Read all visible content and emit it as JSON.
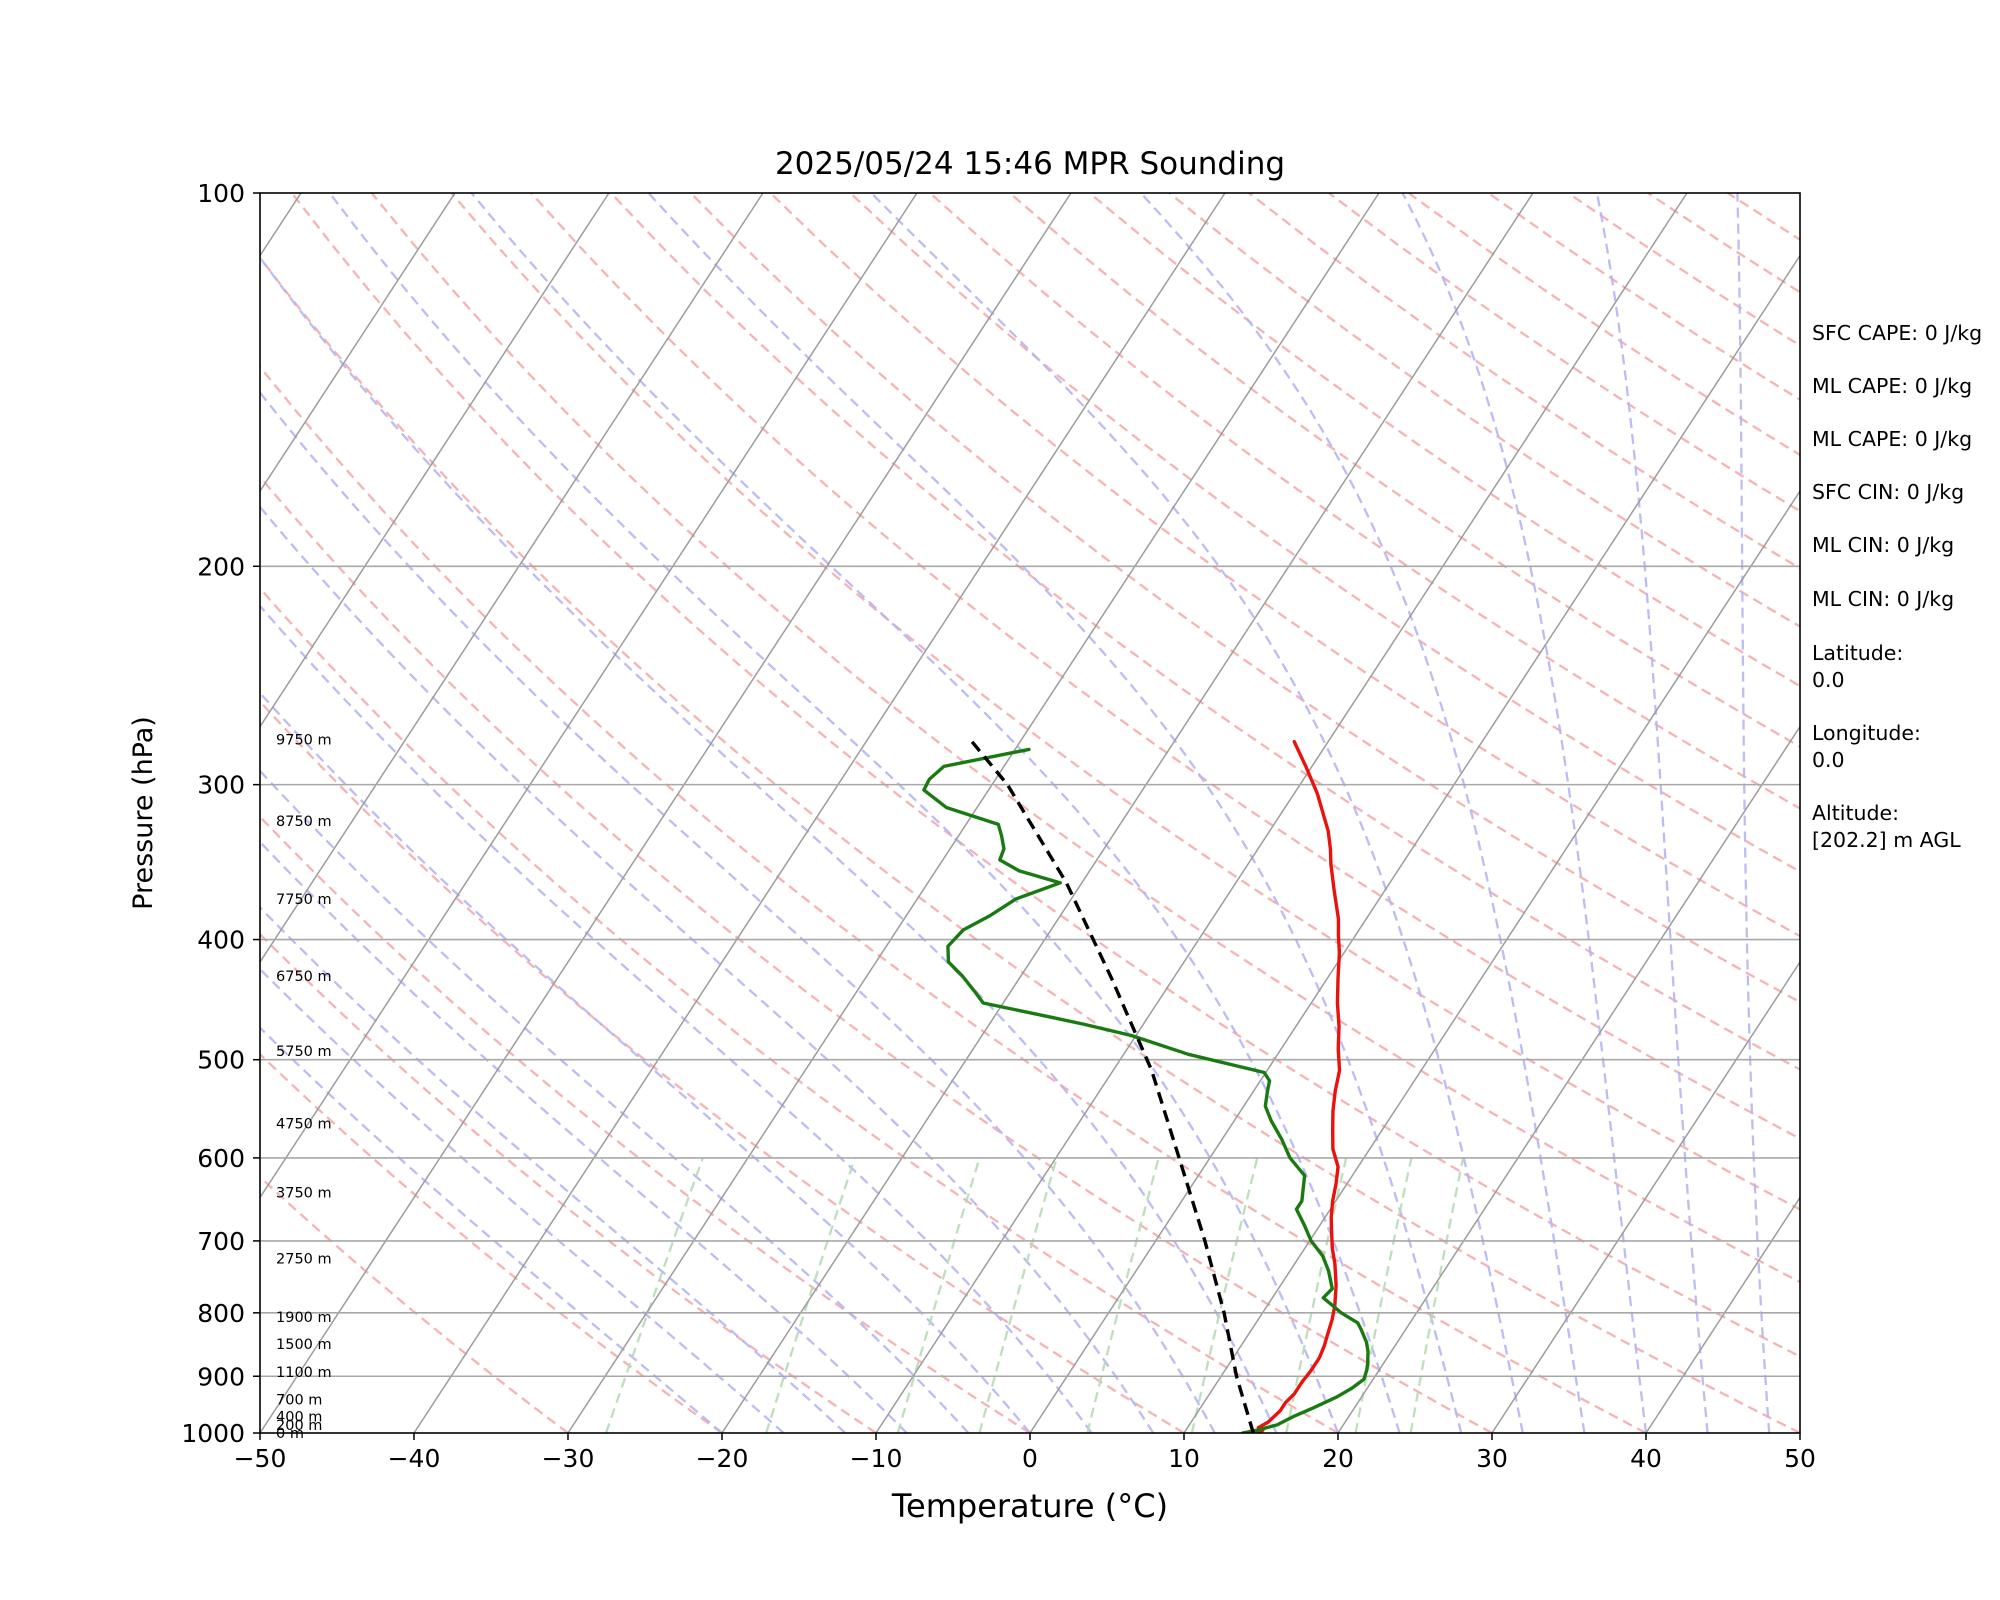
{
  "chart_data": {
    "type": "line",
    "title": "2025/05/24 15:46 MPR Sounding",
    "xlabel": "Temperature (°C)",
    "ylabel": "Pressure (hPa)",
    "xlim": [
      -50,
      50
    ],
    "ylim": [
      1000,
      100
    ],
    "y_scale": "log",
    "skew": "skew-T",
    "x_ticks": [
      "−50",
      "−40",
      "−30",
      "−20",
      "−10",
      "0",
      "10",
      "20",
      "30",
      "40",
      "50"
    ],
    "x_tick_values": [
      -50,
      -40,
      -30,
      -20,
      -10,
      0,
      10,
      20,
      30,
      40,
      50
    ],
    "y_ticks": [
      "1000",
      "900",
      "800",
      "700",
      "600",
      "500",
      "400",
      "300",
      "200",
      "100"
    ],
    "y_tick_values": [
      1000,
      900,
      800,
      700,
      600,
      500,
      400,
      300,
      200,
      100
    ],
    "height_labels": [
      {
        "text": "0 m",
        "pressure": 1000
      },
      {
        "text": "200 m",
        "pressure": 985
      },
      {
        "text": "400 m",
        "pressure": 970
      },
      {
        "text": "700 m",
        "pressure": 940
      },
      {
        "text": "1100 m",
        "pressure": 893
      },
      {
        "text": "1500 m",
        "pressure": 848
      },
      {
        "text": "1900 m",
        "pressure": 806
      },
      {
        "text": "2750 m",
        "pressure": 723
      },
      {
        "text": "3750 m",
        "pressure": 640
      },
      {
        "text": "4750 m",
        "pressure": 563
      },
      {
        "text": "5750 m",
        "pressure": 492
      },
      {
        "text": "6750 m",
        "pressure": 428
      },
      {
        "text": "7750 m",
        "pressure": 371
      },
      {
        "text": "8750 m",
        "pressure": 321
      },
      {
        "text": "9750 m",
        "pressure": 276
      }
    ],
    "series": [
      {
        "color": "#e8120e",
        "style": "solid",
        "points": [
          [
            14.8,
            1000
          ],
          [
            15.0,
            995
          ],
          [
            14.6,
            990
          ],
          [
            15.0,
            980
          ],
          [
            15.3,
            960
          ],
          [
            15.3,
            945
          ],
          [
            15.5,
            930
          ],
          [
            15.5,
            910
          ],
          [
            15.6,
            890
          ],
          [
            15.6,
            870
          ],
          [
            15.4,
            850
          ],
          [
            15.1,
            830
          ],
          [
            14.8,
            810
          ],
          [
            14.4,
            790
          ],
          [
            13.6,
            760
          ],
          [
            12.6,
            730
          ],
          [
            11.8,
            710
          ],
          [
            11.1,
            690
          ],
          [
            10.4,
            670
          ],
          [
            9.8,
            650
          ],
          [
            9.3,
            630
          ],
          [
            8.7,
            610
          ],
          [
            7.6,
            590
          ],
          [
            6.8,
            570
          ],
          [
            6.0,
            550
          ],
          [
            5.3,
            530
          ],
          [
            4.7,
            510
          ],
          [
            3.7,
            490
          ],
          [
            2.8,
            470
          ],
          [
            1.7,
            450
          ],
          [
            0.7,
            430
          ],
          [
            -0.3,
            410
          ],
          [
            -1.1,
            397
          ],
          [
            -1.8,
            385
          ],
          [
            -3.3,
            365
          ],
          [
            -4.6,
            348
          ],
          [
            -5.3,
            338
          ],
          [
            -6.2,
            327
          ],
          [
            -8.5,
            305
          ],
          [
            -10.4,
            290
          ],
          [
            -12.2,
            277
          ]
        ]
      },
      {
        "color": "#1a7a12",
        "style": "solid",
        "points": [
          [
            13.8,
            1000
          ],
          [
            14.6,
            995
          ],
          [
            15.7,
            985
          ],
          [
            16.4,
            970
          ],
          [
            17.3,
            955
          ],
          [
            18.4,
            935
          ],
          [
            19.0,
            920
          ],
          [
            19.4,
            905
          ],
          [
            19.2,
            890
          ],
          [
            19.0,
            880
          ],
          [
            18.5,
            860
          ],
          [
            18.0,
            845
          ],
          [
            17.1,
            825
          ],
          [
            16.6,
            815
          ],
          [
            15.1,
            800
          ],
          [
            14.3,
            790
          ],
          [
            13.3,
            778
          ],
          [
            13.5,
            765
          ],
          [
            12.5,
            740
          ],
          [
            11.5,
            720
          ],
          [
            10.1,
            700
          ],
          [
            9.0,
            680
          ],
          [
            7.8,
            660
          ],
          [
            7.8,
            650
          ],
          [
            6.9,
            620
          ],
          [
            5.2,
            600
          ],
          [
            3.9,
            580
          ],
          [
            2.4,
            560
          ],
          [
            1.4,
            545
          ],
          [
            0.9,
            530
          ],
          [
            0.6,
            520
          ],
          [
            -0.1,
            512
          ],
          [
            -5.8,
            495
          ],
          [
            -10.3,
            478
          ],
          [
            -13.9,
            468
          ],
          [
            -16.3,
            462
          ],
          [
            -21.3,
            450
          ],
          [
            -22.4,
            440
          ],
          [
            -23.8,
            428
          ],
          [
            -25.3,
            417
          ],
          [
            -26.0,
            405
          ],
          [
            -25.7,
            393
          ],
          [
            -24.6,
            383
          ],
          [
            -23.6,
            371
          ],
          [
            -21.4,
            360
          ],
          [
            -24.6,
            352
          ],
          [
            -26.3,
            345
          ],
          [
            -26.5,
            338
          ],
          [
            -27.2,
            330
          ],
          [
            -27.9,
            323
          ],
          [
            -32.0,
            313
          ],
          [
            -34.2,
            303
          ],
          [
            -34.3,
            297
          ],
          [
            -33.9,
            290
          ],
          [
            -29.1,
            281
          ]
        ]
      },
      {
        "color": "#000000",
        "style": "dashed",
        "points": [
          [
            14.5,
            1000
          ],
          [
            11.0,
            900
          ],
          [
            7.5,
            800
          ],
          [
            3.2,
            700
          ],
          [
            -2.0,
            600
          ],
          [
            -7.5,
            510
          ],
          [
            -14.0,
            430
          ],
          [
            -21.0,
            360
          ],
          [
            -29.0,
            300
          ],
          [
            -33.5,
            275
          ]
        ]
      }
    ],
    "indices": [
      "SFC CAPE: 0 J/kg",
      "ML CAPE: 0 J/kg",
      "ML CAPE: 0 J/kg",
      "SFC CIN: 0 J/kg",
      "ML CIN: 0 J/kg",
      "ML CIN: 0 J/kg",
      "Latitude:",
      "0.0",
      "Longitude:",
      "0.0",
      "Altitude:",
      "[202.2] m AGL"
    ],
    "grid": true,
    "colors": {
      "temperature": "#e8120e",
      "dewpoint": "#1a7a12",
      "parcel": "#000000",
      "dry_adiabat": "#f4a6a6",
      "moist_adiabat": "#b5b5f5",
      "mixing_ratio": "#b6dcb6",
      "isotherm": "#9c9c9c",
      "isobar": "#a8a8a8"
    }
  }
}
